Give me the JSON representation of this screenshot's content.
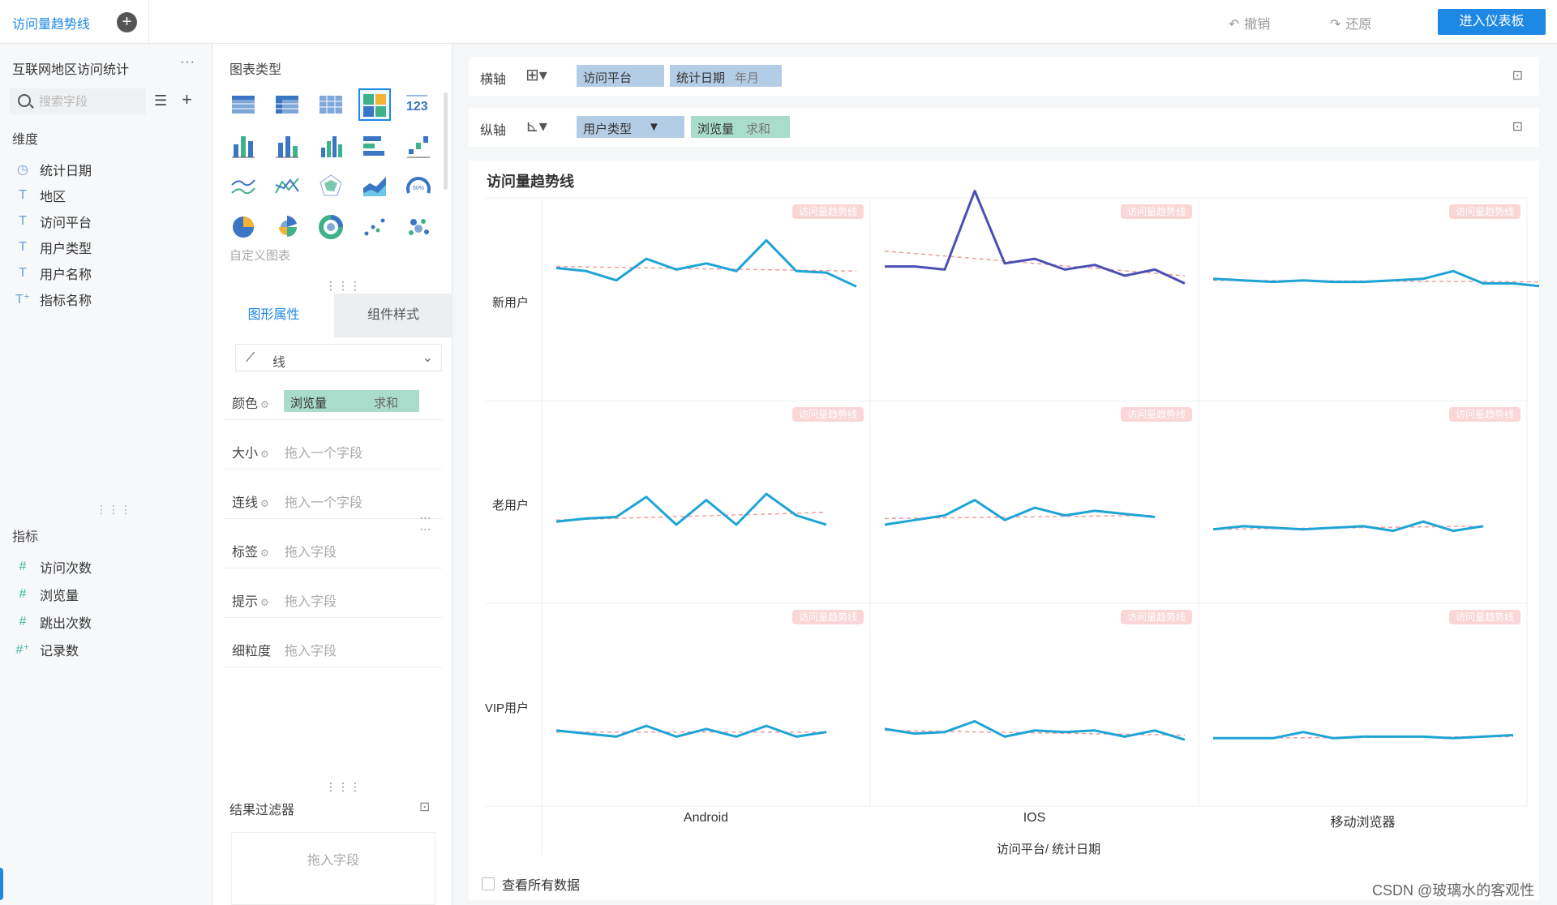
{
  "topbar": {
    "tab_label": "访问量趋势线",
    "undo_label": "撤销",
    "redo_label": "还原",
    "enter_dashboard_label": "进入仪表板"
  },
  "left": {
    "dataset_title": "互联网地区访问统计",
    "more": "···",
    "search_placeholder": "搜索字段",
    "dimensions_label": "维度",
    "dimensions": [
      {
        "icon": "clock-icon",
        "glyph": "◷",
        "name": "统计日期"
      },
      {
        "icon": "text-field-icon",
        "glyph": "T",
        "name": "地区"
      },
      {
        "icon": "text-field-icon",
        "glyph": "T",
        "name": "访问平台"
      },
      {
        "icon": "text-field-icon",
        "glyph": "T",
        "name": "用户类型"
      },
      {
        "icon": "text-field-icon",
        "glyph": "T",
        "name": "用户名称"
      },
      {
        "icon": "text-calc-field-icon",
        "glyph": "T⁺",
        "name": "指标名称"
      }
    ],
    "metrics_label": "指标",
    "metrics": [
      {
        "icon": "hash-icon",
        "glyph": "#",
        "name": "访问次数"
      },
      {
        "icon": "hash-icon",
        "glyph": "#",
        "name": "浏览量"
      },
      {
        "icon": "hash-icon",
        "glyph": "#",
        "name": "跳出次数"
      },
      {
        "icon": "hash-calc-icon",
        "glyph": "#⁺",
        "name": "记录数"
      }
    ]
  },
  "middle": {
    "chart_types_label": "图表类型",
    "custom_chart_label": "自定义图表",
    "tab_shape": "图形属性",
    "tab_component": "组件样式",
    "mark_type": "线",
    "properties": [
      {
        "label": "颜色",
        "placeholder": "",
        "chip_field": "浏览量",
        "chip_agg": "求和"
      },
      {
        "label": "大小",
        "placeholder": "拖入一个字段"
      },
      {
        "label": "连线",
        "placeholder": "拖入一个字段"
      },
      {
        "label": "标签",
        "placeholder": "拖入字段"
      },
      {
        "label": "提示",
        "placeholder": "拖入字段"
      },
      {
        "label": "细粒度",
        "placeholder": "拖入字段"
      }
    ],
    "result_filter_label": "结果过滤器",
    "result_filter_placeholder": "拖入字段"
  },
  "axes": {
    "x_label": "横轴",
    "x_fields": [
      {
        "name": "访问平台",
        "suffix": ""
      },
      {
        "name": "统计日期",
        "suffix": "年月"
      }
    ],
    "y_label": "纵轴",
    "y_fields": [
      {
        "name": "用户类型",
        "suffix": "▼"
      },
      {
        "name": "浏览量",
        "suffix": "求和"
      }
    ]
  },
  "chart": {
    "title": "访问量趋势线",
    "view_all_label": "查看所有数据",
    "x_axis_title": "访问平台/ 统计日期",
    "badge_text": "访问量趋势线",
    "line_color": "#1ea4d6",
    "peak_color": "#4b4fb5",
    "trend_color": "#f19c9c"
  },
  "chart_data": {
    "type": "line",
    "rows": [
      "新用户",
      "老用户",
      "VIP用户"
    ],
    "columns": [
      "Android",
      "IOS",
      "移动浏览器"
    ],
    "ylim": [
      0,
      10
    ],
    "panels": [
      [
        {
          "values": [
            6.5,
            6.3,
            5.7,
            7.1,
            6.4,
            6.8,
            6.3,
            8.3,
            6.3,
            6.2,
            5.3
          ],
          "trend": [
            6.6,
            6.3
          ]
        },
        {
          "values": [
            6.6,
            6.6,
            6.4,
            11.5,
            6.8,
            7.1,
            6.4,
            6.7,
            6.0,
            6.4,
            5.5
          ],
          "trend": [
            7.6,
            6.0
          ]
        },
        {
          "values": [
            5.8,
            5.7,
            5.6,
            5.7,
            5.6,
            5.6,
            5.7,
            5.8,
            6.3,
            5.5,
            5.5,
            5.3
          ],
          "trend": [
            5.7,
            5.6
          ]
        }
      ],
      [
        {
          "values": [
            3.2,
            3.4,
            3.5,
            4.8,
            3.0,
            4.6,
            3.0,
            5.0,
            3.6,
            3.0
          ],
          "trend": [
            3.3,
            3.8
          ]
        },
        {
          "values": [
            3.0,
            3.3,
            3.6,
            4.6,
            3.3,
            4.1,
            3.6,
            3.9,
            3.7,
            3.5
          ],
          "trend": [
            3.4,
            3.6
          ]
        },
        {
          "values": [
            2.7,
            2.9,
            2.8,
            2.7,
            2.8,
            2.9,
            2.6,
            3.2,
            2.6,
            2.9
          ],
          "trend": [
            2.7,
            2.9
          ]
        }
      ],
      [
        {
          "values": [
            2.8,
            2.6,
            2.4,
            3.1,
            2.4,
            2.9,
            2.4,
            3.1,
            2.4,
            2.7
          ],
          "trend": [
            2.7,
            2.7
          ]
        },
        {
          "values": [
            2.9,
            2.6,
            2.7,
            3.4,
            2.4,
            2.8,
            2.7,
            2.8,
            2.4,
            2.8,
            2.2
          ],
          "trend": [
            2.8,
            2.5
          ]
        },
        {
          "values": [
            2.3,
            2.3,
            2.3,
            2.7,
            2.3,
            2.4,
            2.4,
            2.4,
            2.3,
            2.4,
            2.5
          ],
          "trend": [
            2.3,
            2.4
          ]
        }
      ]
    ]
  },
  "footer": {
    "csdn": "CSDN @玻璃水的客观性"
  }
}
